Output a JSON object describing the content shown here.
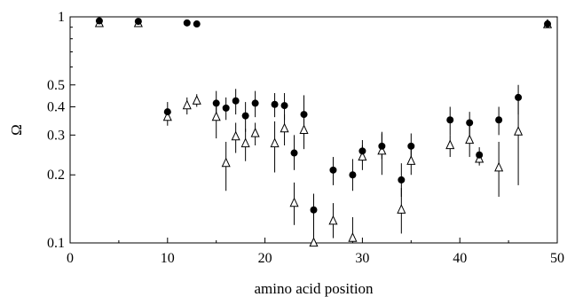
{
  "chart_data": {
    "type": "scatter",
    "xlabel": "amino acid position",
    "ylabel": "Ω",
    "xlim": [
      0,
      50
    ],
    "ylim": [
      0.1,
      1
    ],
    "yscale": "log",
    "grid": false,
    "x_ticks": [
      0,
      10,
      20,
      30,
      40,
      50
    ],
    "x_tick_labels": [
      "0",
      "10",
      "20",
      "30",
      "40",
      "50"
    ],
    "y_ticks": [
      0.1,
      0.2,
      0.3,
      0.4,
      0.5,
      1
    ],
    "y_tick_labels": [
      "0.1",
      "0.2",
      "0.3",
      "0.4",
      "0.5",
      "1"
    ],
    "series": [
      {
        "marker": "filled-circle",
        "color": "#000000",
        "points": [
          {
            "x": 3,
            "y": 0.96
          },
          {
            "x": 7,
            "y": 0.955
          },
          {
            "x": 10,
            "y": 0.38,
            "lo": 0.35,
            "hi": 0.42
          },
          {
            "x": 12,
            "y": 0.94
          },
          {
            "x": 13,
            "y": 0.93
          },
          {
            "x": 15,
            "y": 0.415,
            "lo": 0.37,
            "hi": 0.47
          },
          {
            "x": 16,
            "y": 0.395,
            "lo": 0.35,
            "hi": 0.44
          },
          {
            "x": 17,
            "y": 0.425,
            "lo": 0.37,
            "hi": 0.48
          },
          {
            "x": 18,
            "y": 0.365,
            "lo": 0.31,
            "hi": 0.42
          },
          {
            "x": 19,
            "y": 0.415,
            "lo": 0.36,
            "hi": 0.47
          },
          {
            "x": 21,
            "y": 0.41,
            "lo": 0.36,
            "hi": 0.46
          },
          {
            "x": 22,
            "y": 0.405,
            "lo": 0.35,
            "hi": 0.46
          },
          {
            "x": 23,
            "y": 0.25,
            "lo": 0.21,
            "hi": 0.3
          },
          {
            "x": 24,
            "y": 0.37,
            "lo": 0.3,
            "hi": 0.45
          },
          {
            "x": 25,
            "y": 0.14,
            "lo": 0.1,
            "hi": 0.165
          },
          {
            "x": 27,
            "y": 0.21,
            "lo": 0.18,
            "hi": 0.24
          },
          {
            "x": 29,
            "y": 0.2,
            "lo": 0.17,
            "hi": 0.235
          },
          {
            "x": 30,
            "y": 0.255,
            "lo": 0.23,
            "hi": 0.285
          },
          {
            "x": 32,
            "y": 0.268,
            "lo": 0.235,
            "hi": 0.305
          },
          {
            "x": 34,
            "y": 0.19,
            "lo": 0.16,
            "hi": 0.225
          },
          {
            "x": 35,
            "y": 0.268,
            "lo": 0.235,
            "hi": 0.305
          },
          {
            "x": 39,
            "y": 0.35,
            "lo": 0.3,
            "hi": 0.4
          },
          {
            "x": 41,
            "y": 0.34,
            "lo": 0.3,
            "hi": 0.38
          },
          {
            "x": 42,
            "y": 0.245,
            "lo": 0.225,
            "hi": 0.265
          },
          {
            "x": 44,
            "y": 0.35,
            "lo": 0.3,
            "hi": 0.4
          },
          {
            "x": 46,
            "y": 0.44,
            "lo": 0.37,
            "hi": 0.5
          },
          {
            "x": 49,
            "y": 0.93
          }
        ]
      },
      {
        "marker": "open-triangle",
        "color": "#000000",
        "points": [
          {
            "x": 3,
            "y": 0.935
          },
          {
            "x": 7,
            "y": 0.935
          },
          {
            "x": 10,
            "y": 0.36,
            "lo": 0.33,
            "hi": 0.39
          },
          {
            "x": 12,
            "y": 0.405,
            "lo": 0.37,
            "hi": 0.44
          },
          {
            "x": 13,
            "y": 0.425,
            "lo": 0.4,
            "hi": 0.455
          },
          {
            "x": 15,
            "y": 0.36,
            "lo": 0.29,
            "hi": 0.43
          },
          {
            "x": 16,
            "y": 0.225,
            "lo": 0.17,
            "hi": 0.28
          },
          {
            "x": 17,
            "y": 0.295,
            "lo": 0.25,
            "hi": 0.34
          },
          {
            "x": 18,
            "y": 0.275,
            "lo": 0.23,
            "hi": 0.32
          },
          {
            "x": 19,
            "y": 0.305,
            "lo": 0.27,
            "hi": 0.34
          },
          {
            "x": 21,
            "y": 0.275,
            "lo": 0.205,
            "hi": 0.345
          },
          {
            "x": 22,
            "y": 0.32,
            "lo": 0.27,
            "hi": 0.37
          },
          {
            "x": 23,
            "y": 0.15,
            "lo": 0.12,
            "hi": 0.185
          },
          {
            "x": 24,
            "y": 0.315,
            "lo": 0.26,
            "hi": 0.37
          },
          {
            "x": 25,
            "y": 0.1,
            "lo": 0.1,
            "hi": 0.12
          },
          {
            "x": 27,
            "y": 0.125,
            "lo": 0.105,
            "hi": 0.15
          },
          {
            "x": 29,
            "y": 0.105,
            "lo": 0.1,
            "hi": 0.13
          },
          {
            "x": 30,
            "y": 0.24,
            "lo": 0.21,
            "hi": 0.27
          },
          {
            "x": 32,
            "y": 0.255,
            "lo": 0.2,
            "hi": 0.31
          },
          {
            "x": 34,
            "y": 0.14,
            "lo": 0.11,
            "hi": 0.175
          },
          {
            "x": 35,
            "y": 0.23,
            "lo": 0.2,
            "hi": 0.27
          },
          {
            "x": 39,
            "y": 0.27,
            "lo": 0.24,
            "hi": 0.3
          },
          {
            "x": 41,
            "y": 0.285,
            "lo": 0.24,
            "hi": 0.33
          },
          {
            "x": 42,
            "y": 0.235,
            "lo": 0.22,
            "hi": 0.25
          },
          {
            "x": 44,
            "y": 0.215,
            "lo": 0.16,
            "hi": 0.28
          },
          {
            "x": 46,
            "y": 0.31,
            "lo": 0.18,
            "hi": 0.45
          },
          {
            "x": 49,
            "y": 0.925
          }
        ]
      }
    ]
  }
}
